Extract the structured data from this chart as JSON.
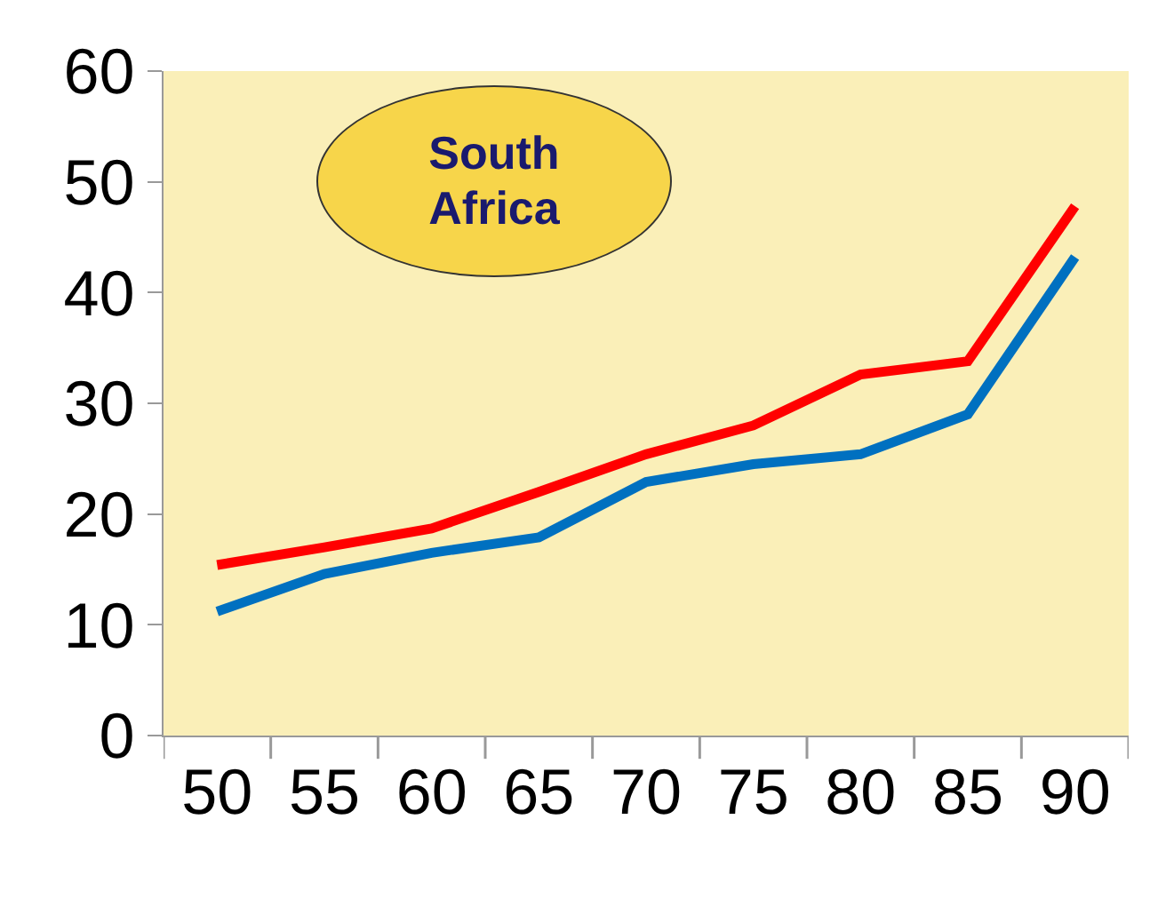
{
  "chart_data": {
    "type": "line",
    "title": "South Africa",
    "categories": [
      "50",
      "55",
      "60",
      "65",
      "70",
      "75",
      "80",
      "85",
      "90"
    ],
    "series": [
      {
        "color": "#ff0000",
        "values": [
          15.4,
          17,
          18.7,
          22,
          25.4,
          28,
          32.6,
          33.8,
          47.8
        ]
      },
      {
        "color": "#0070c0",
        "values": [
          11.2,
          14.6,
          16.5,
          17.9,
          22.9,
          24.5,
          25.4,
          29,
          43.2
        ]
      }
    ],
    "ylim": [
      0,
      60
    ],
    "yticks": [
      0,
      10,
      20,
      30,
      40,
      50,
      60
    ],
    "grid": false,
    "marker": "none",
    "line_style": "solid"
  }
}
